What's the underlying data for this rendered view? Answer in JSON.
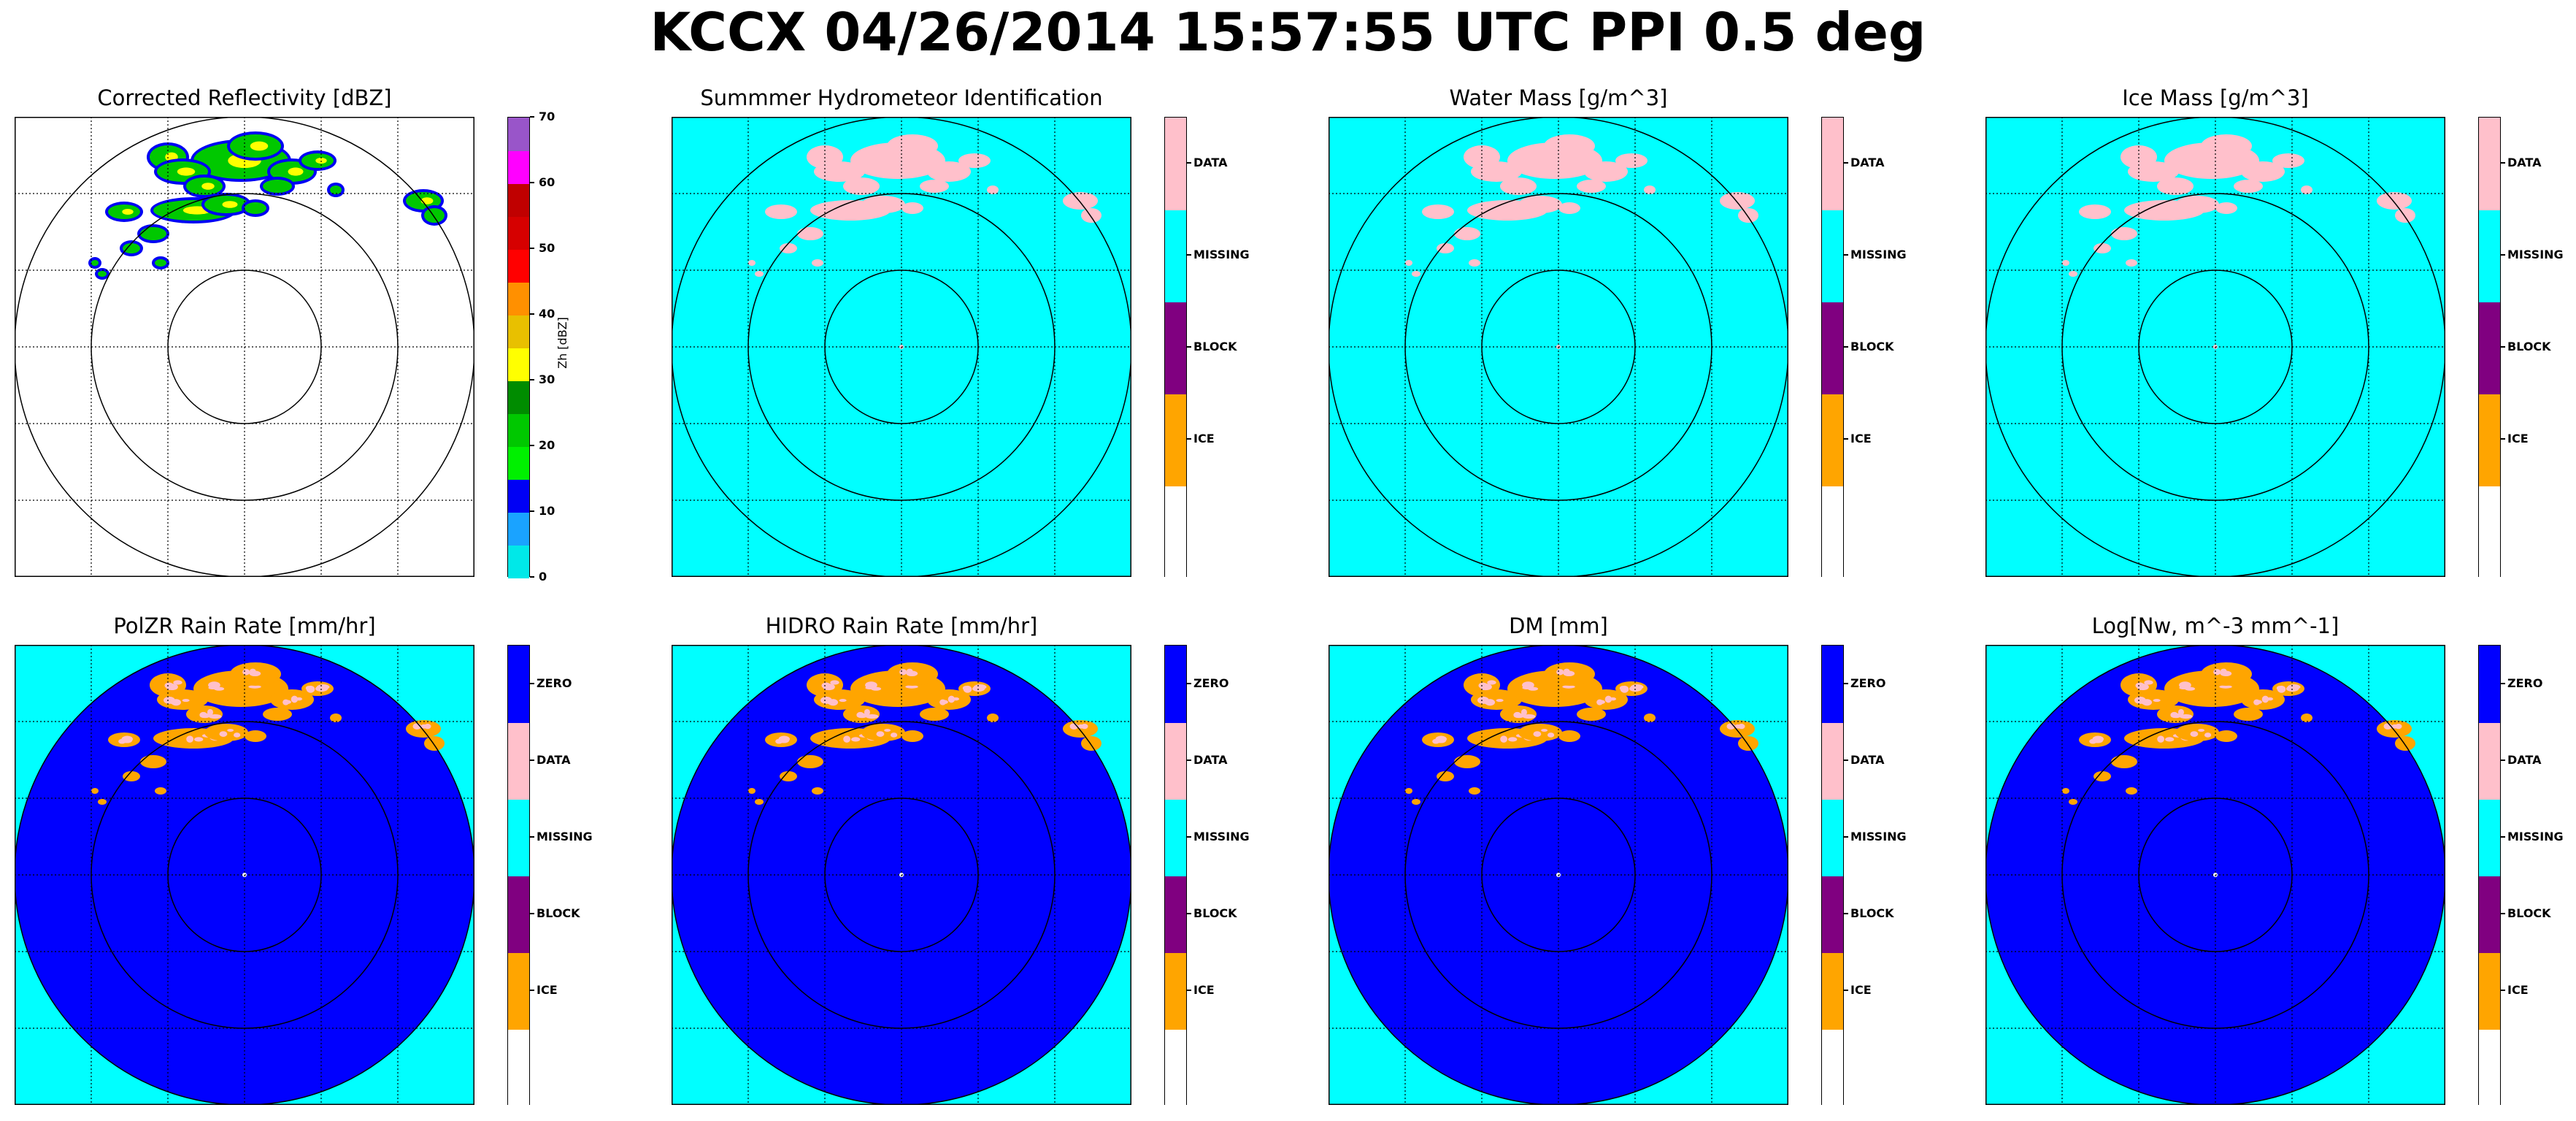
{
  "suptitle": "KCCX 04/26/2014 15:57:55 UTC PPI 0.5 deg",
  "chart_data": [
    {
      "type": "heatmap",
      "title": "Corrected Reflectivity [dBZ]",
      "colorbar": {
        "kind": "continuous",
        "label": "Zh [dBZ]",
        "vmin": 0,
        "vmax": 70,
        "tick_labels": [
          "0",
          "10",
          "20",
          "30",
          "40",
          "50",
          "60",
          "70"
        ],
        "colors": [
          "#00e8e8",
          "#1aa3ff",
          "#0000f5",
          "#00f000",
          "#00c800",
          "#008c00",
          "#ffff00",
          "#e8c000",
          "#ff9000",
          "#ff0000",
          "#d60000",
          "#c00000",
          "#ff00ff",
          "#9955c9"
        ]
      },
      "background": "#ffffff",
      "grid": true
    },
    {
      "type": "heatmap",
      "title": "Summmer Hydrometeor Identification",
      "colorbar": {
        "kind": "categorical",
        "categories": [
          "",
          "ICE",
          "BLOCK",
          "MISSING",
          "DATA"
        ],
        "colors": [
          "#ffffff",
          "#ffa500",
          "#800080",
          "#00ffff",
          "#ffc0cb"
        ]
      },
      "background": "#00ffff",
      "echo_color": "#ffc0cb",
      "grid": true
    },
    {
      "type": "heatmap",
      "title": "Water Mass [g/m^3]",
      "colorbar": {
        "kind": "categorical",
        "categories": [
          "",
          "ICE",
          "BLOCK",
          "MISSING",
          "DATA"
        ],
        "colors": [
          "#ffffff",
          "#ffa500",
          "#800080",
          "#00ffff",
          "#ffc0cb"
        ]
      },
      "background": "#00ffff",
      "echo_color": "#ffc0cb",
      "grid": true
    },
    {
      "type": "heatmap",
      "title": "Ice Mass [g/m^3]",
      "colorbar": {
        "kind": "categorical",
        "categories": [
          "",
          "ICE",
          "BLOCK",
          "MISSING",
          "DATA"
        ],
        "colors": [
          "#ffffff",
          "#ffa500",
          "#800080",
          "#00ffff",
          "#ffc0cb"
        ]
      },
      "background": "#00ffff",
      "echo_color": "#ffc0cb",
      "grid": true
    },
    {
      "type": "heatmap",
      "title": "PolZR Rain Rate [mm/hr]",
      "colorbar": {
        "kind": "categorical",
        "categories": [
          "",
          "ICE",
          "BLOCK",
          "MISSING",
          "DATA",
          "ZERO"
        ],
        "colors": [
          "#ffffff",
          "#ffa500",
          "#800080",
          "#00ffff",
          "#ffc0cb",
          "#0000ff"
        ]
      },
      "background": "#00ffff",
      "disk_color": "#0000ff",
      "echo_color": "#ffa500",
      "grid": true
    },
    {
      "type": "heatmap",
      "title": "HIDRO Rain Rate [mm/hr]",
      "colorbar": {
        "kind": "categorical",
        "categories": [
          "",
          "ICE",
          "BLOCK",
          "MISSING",
          "DATA",
          "ZERO"
        ],
        "colors": [
          "#ffffff",
          "#ffa500",
          "#800080",
          "#00ffff",
          "#ffc0cb",
          "#0000ff"
        ]
      },
      "background": "#00ffff",
      "disk_color": "#0000ff",
      "echo_color": "#ffa500",
      "grid": true
    },
    {
      "type": "heatmap",
      "title": "DM [mm]",
      "colorbar": {
        "kind": "categorical",
        "categories": [
          "",
          "ICE",
          "BLOCK",
          "MISSING",
          "DATA",
          "ZERO"
        ],
        "colors": [
          "#ffffff",
          "#ffa500",
          "#800080",
          "#00ffff",
          "#ffc0cb",
          "#0000ff"
        ]
      },
      "background": "#00ffff",
      "disk_color": "#0000ff",
      "echo_color": "#ffa500",
      "grid": true
    },
    {
      "type": "heatmap",
      "title": "Log[Nw, m^-3 mm^-1]",
      "colorbar": {
        "kind": "categorical",
        "categories": [
          "",
          "ICE",
          "BLOCK",
          "MISSING",
          "DATA",
          "ZERO"
        ],
        "colors": [
          "#ffffff",
          "#ffa500",
          "#800080",
          "#00ffff",
          "#ffc0cb",
          "#0000ff"
        ]
      },
      "background": "#00ffff",
      "disk_color": "#0000ff",
      "echo_color": "#ffa500",
      "grid": true
    }
  ]
}
